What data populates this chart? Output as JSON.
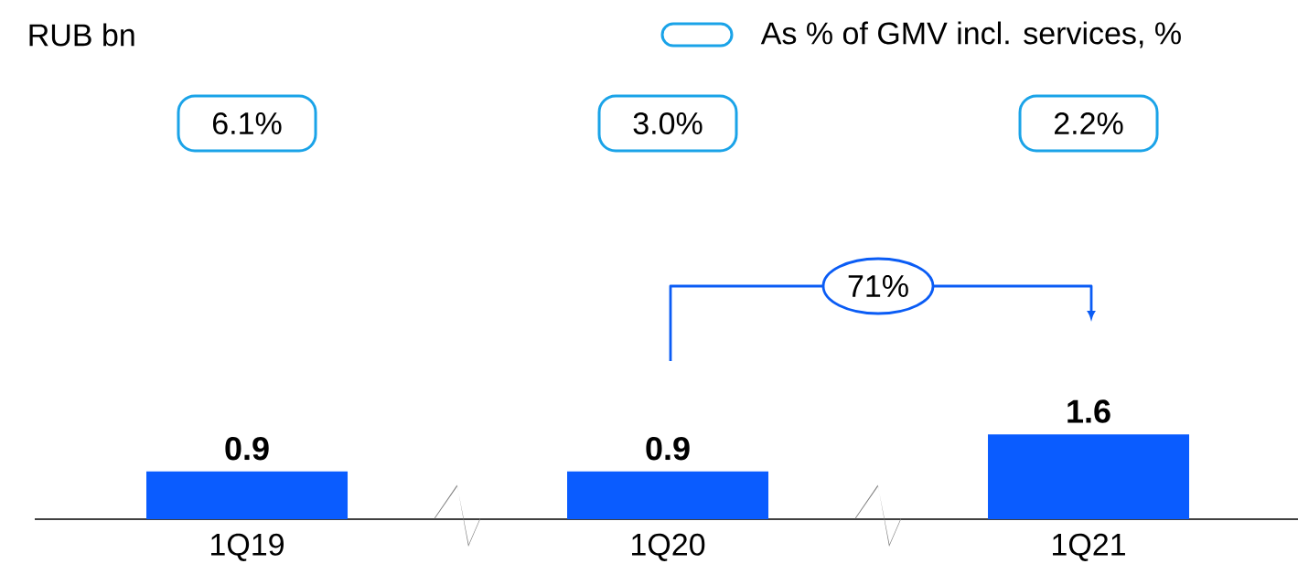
{
  "chart_data": {
    "type": "bar",
    "categories": [
      "1Q19",
      "1Q20",
      "1Q21"
    ],
    "values": [
      0.9,
      0.9,
      1.6
    ],
    "color": "#0a5cff",
    "data_labels": true,
    "annotations": [
      "RUB bn",
      "As % of GMV incl. services, %",
      "6.1%",
      "3.0%",
      "2.2%",
      "71%"
    ]
  }
}
